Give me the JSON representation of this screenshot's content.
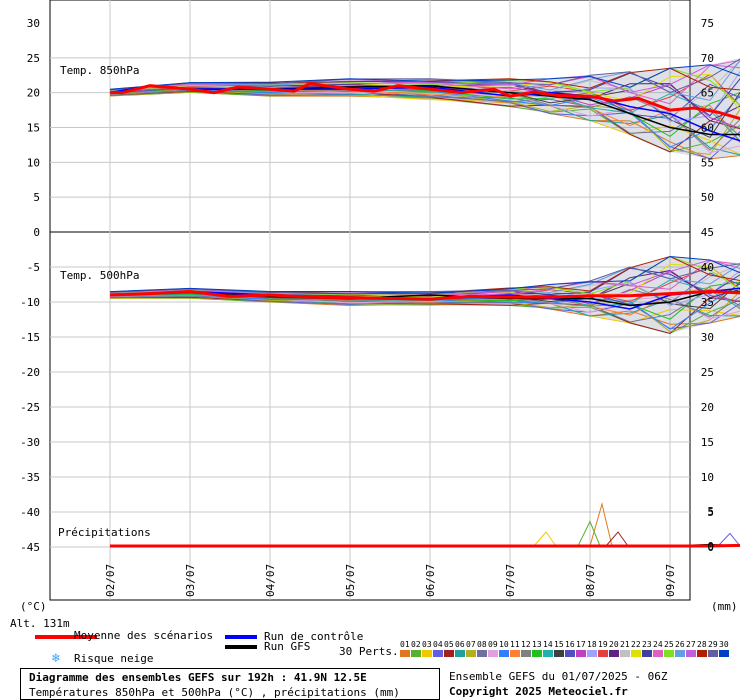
{
  "header": {
    "title": "Diagramme des ensembles GEFS sur 192h : 41.9N 12.5E",
    "subtitle": "Températures 850hPa et 500hPa (°C) , précipitations (mm)",
    "run_info": "Ensemble GEFS du 01/07/2025 - 06Z",
    "copyright": "Copyright 2025 Meteociel.fr"
  },
  "axes": {
    "left_unit": "(°C)",
    "right_unit": "(mm)",
    "altitude": "Alt. 131m",
    "x_tick_labels": [
      "02/07",
      "03/07",
      "04/07",
      "05/07",
      "06/07",
      "07/07",
      "08/07",
      "09/07"
    ]
  },
  "legend": {
    "mean": "Moyenne des scénarios",
    "control": "Run de contrôle",
    "gfs": "Run GFS",
    "snow": "Risque neige",
    "perturbations": "30 Perts.",
    "mean_color": "#ff0000",
    "control_color": "#0000ff",
    "gfs_color": "#000000",
    "snow_icon": "snowflake-icon"
  },
  "perturbation_numbers": [
    "01",
    "02",
    "03",
    "04",
    "05",
    "06",
    "07",
    "08",
    "09",
    "10",
    "11",
    "12",
    "13",
    "14",
    "15",
    "16",
    "17",
    "18",
    "19",
    "20",
    "21",
    "22",
    "23",
    "24",
    "25",
    "26",
    "27",
    "28",
    "29",
    "30"
  ],
  "perturbation_colors": [
    "#e07820",
    "#58b030",
    "#f0c800",
    "#6060e0",
    "#a02020",
    "#20a0a0",
    "#b0b020",
    "#7070a0",
    "#e0a0e0",
    "#3080ff",
    "#ff8030",
    "#808080",
    "#20c020",
    "#20b0b0",
    "#404040",
    "#5050c0",
    "#c040c0",
    "#a0a0ff",
    "#e04040",
    "#602080",
    "#c0c0c0",
    "#e0e000",
    "#4040a0",
    "#e060c0",
    "#80e020",
    "#60a0e0",
    "#c060e0",
    "#b02000",
    "#6060a0",
    "#0040c0"
  ],
  "chart_data": [
    {
      "type": "line",
      "title": "Temp. 850hPa",
      "ylabel": "(°C)",
      "left_ticks": [
        "30",
        "25",
        "20",
        "15",
        "10",
        "5",
        "0"
      ],
      "right_ticks": [
        "75",
        "70",
        "65",
        "60",
        "55",
        "50",
        "45"
      ],
      "ylim": [
        0,
        30
      ],
      "x_labels": [
        "02/07",
        "03/07",
        "04/07",
        "05/07",
        "06/07",
        "07/07",
        "08/07",
        "09/07"
      ],
      "xlim": [
        0,
        8
      ],
      "series": [
        {
          "name": "Moyenne des scénarios",
          "x": [
            0,
            0.15,
            0.5,
            1,
            1.3,
            1.6,
            2,
            2.3,
            2.5,
            3,
            3.3,
            3.6,
            4,
            4.4,
            4.8,
            5,
            5.3,
            5.6,
            6,
            6.3,
            6.6,
            7,
            7.3,
            7.6,
            7.9
          ],
          "y": [
            20,
            20,
            21,
            20.5,
            20,
            20.8,
            20.5,
            20.2,
            21.3,
            20.5,
            20.2,
            21,
            20.5,
            20,
            20.5,
            19.5,
            20.1,
            19.6,
            19.5,
            18.8,
            19.2,
            17.5,
            17.8,
            17.2,
            16.2
          ]
        },
        {
          "name": "Run de contrôle",
          "x": [
            0,
            0.5,
            1,
            2,
            3,
            4,
            5,
            5.5,
            6,
            6.5,
            7,
            7.5,
            7.9
          ],
          "y": [
            20,
            21,
            20.5,
            20.5,
            20.5,
            20.8,
            19.5,
            20,
            19.5,
            18,
            17,
            14.5,
            13
          ]
        },
        {
          "name": "Run GFS",
          "x": [
            0,
            0.5,
            1,
            2,
            3,
            4,
            5,
            5.5,
            6,
            6.5,
            7,
            7.5,
            7.9
          ],
          "y": [
            20,
            21,
            20.5,
            20.5,
            20.8,
            21,
            20,
            19.5,
            19,
            17,
            15,
            14,
            14
          ]
        }
      ],
      "spread": {
        "x": [
          0,
          1,
          2,
          3,
          4,
          5,
          5.5,
          6,
          6.5,
          7,
          7.5,
          7.9
        ],
        "min": [
          19.5,
          20,
          19.5,
          19.5,
          19,
          18,
          17,
          16,
          14,
          11.5,
          10.5,
          11
        ],
        "max": [
          20.5,
          21.5,
          21.5,
          22,
          22,
          22,
          22,
          22.5,
          23,
          23.5,
          24,
          25
        ]
      }
    },
    {
      "type": "line",
      "title": "Temp. 500hPa",
      "ylabel": "(°C)",
      "left_ticks": [
        "-5",
        "-10",
        "-15",
        "-20",
        "-25",
        "-30",
        "-35",
        "-40",
        "-45"
      ],
      "right_ticks": [
        "40",
        "35",
        "30",
        "25",
        "20",
        "15",
        "10",
        "5",
        "0"
      ],
      "ylim": [
        -45,
        0
      ],
      "x_labels": [
        "02/07",
        "03/07",
        "04/07",
        "05/07",
        "06/07",
        "07/07",
        "08/07",
        "09/07"
      ],
      "xlim": [
        0,
        8
      ],
      "series": [
        {
          "name": "Moyenne des scénarios",
          "x": [
            0,
            0.5,
            1,
            1.5,
            2,
            2.5,
            3,
            3.5,
            4,
            4.5,
            5,
            5.5,
            6,
            6.5,
            7,
            7.5,
            7.9
          ],
          "y": [
            -9,
            -8.8,
            -8.5,
            -9.2,
            -9,
            -9.3,
            -9.4,
            -9.5,
            -9.6,
            -9.2,
            -9.3,
            -9.3,
            -9.1,
            -9.1,
            -8.8,
            -8.5,
            -8.7
          ]
        },
        {
          "name": "Run de contrôle",
          "x": [
            0,
            1,
            2,
            3,
            4,
            5,
            6,
            6.5,
            7,
            7.5,
            7.9
          ],
          "y": [
            -9,
            -8.5,
            -9,
            -9.5,
            -9.5,
            -9,
            -10,
            -11,
            -9,
            -8.5,
            -8
          ]
        },
        {
          "name": "Run GFS",
          "x": [
            0,
            1,
            2,
            3,
            4,
            5,
            6,
            6.5,
            7,
            7.5,
            7.9
          ],
          "y": [
            -9,
            -8.5,
            -9.2,
            -9.5,
            -9,
            -9.5,
            -9.5,
            -10.5,
            -10,
            -8.5,
            -8.5
          ]
        }
      ],
      "spread": {
        "x": [
          0,
          1,
          2,
          3,
          4,
          5,
          5.5,
          6,
          6.5,
          7,
          7.5,
          7.9
        ],
        "min": [
          -9.5,
          -9.5,
          -10,
          -10.5,
          -10.5,
          -10.5,
          -11,
          -12,
          -13,
          -14.5,
          -13,
          -12
        ]
      },
      "spread_max": [
        -8.5,
        -8,
        -8.5,
        -8.5,
        -8.5,
        -8,
        -7.5,
        -7,
        -5,
        -3.5,
        -4,
        -4.5
      ]
    },
    {
      "type": "line",
      "title": "Précipitations",
      "ylabel": "(mm)",
      "right_ticks_mm": [
        "5",
        "0"
      ],
      "x_labels": [
        "02/07",
        "03/07",
        "04/07",
        "05/07",
        "06/07",
        "07/07",
        "08/07",
        "09/07"
      ],
      "xlim": [
        0,
        8
      ],
      "ylim_mm": [
        0,
        10
      ],
      "series": [
        {
          "name": "Moyenne des scénarios",
          "x": [
            0,
            1,
            2,
            3,
            4,
            5,
            6,
            7,
            7.5,
            7.9
          ],
          "y": [
            0,
            0,
            0,
            0,
            0,
            0,
            0,
            0,
            0,
            0.1
          ]
        },
        {
          "name": "Run de contrôle",
          "x": [
            0,
            2,
            4,
            6,
            7,
            7.5,
            7.9
          ],
          "y": [
            0,
            0,
            0,
            0,
            0,
            0,
            0
          ]
        },
        {
          "name": "Run GFS",
          "x": [
            0,
            2,
            4,
            6,
            7,
            7.5,
            7.9
          ],
          "y": [
            0,
            0,
            0,
            0,
            0,
            0.2,
            0
          ]
        }
      ],
      "peaks": [
        {
          "x": 6.15,
          "y": 6.0
        },
        {
          "x": 6.0,
          "y": 3.5
        },
        {
          "x": 5.45,
          "y": 2.0
        },
        {
          "x": 7.75,
          "y": 1.8
        },
        {
          "x": 6.35,
          "y": 2.0
        }
      ]
    }
  ]
}
